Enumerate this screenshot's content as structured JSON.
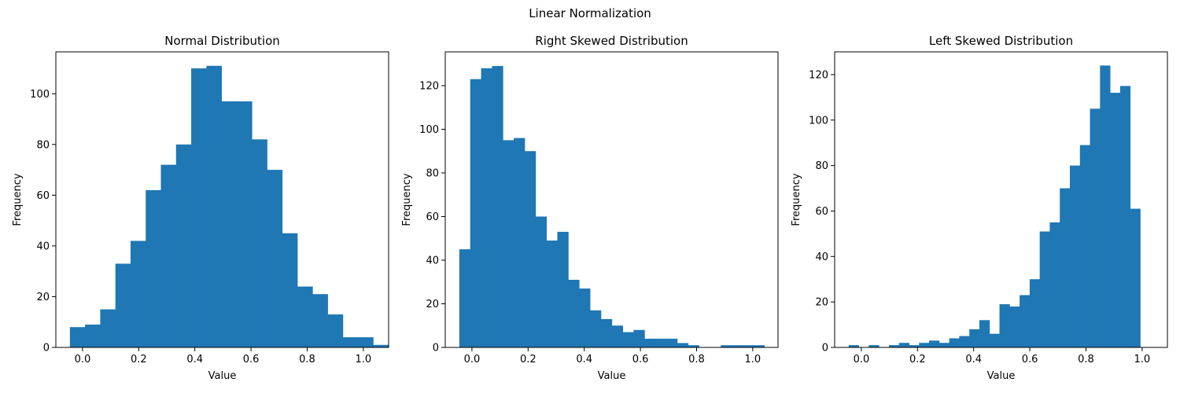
{
  "figure": {
    "suptitle": "Linear Normalization"
  },
  "chart_data": [
    {
      "type": "bar",
      "title": "Normal Distribution",
      "xlabel": "Value",
      "ylabel": "Frequency",
      "xlim": [
        -0.095,
        1.09
      ],
      "ylim": [
        0,
        116.5
      ],
      "xticks": [
        0.0,
        0.2,
        0.4,
        0.6,
        0.8,
        1.0
      ],
      "xtick_labels": [
        "0.0",
        "0.2",
        "0.4",
        "0.6",
        "0.8",
        "1.0"
      ],
      "yticks": [
        0,
        20,
        40,
        60,
        80,
        100
      ],
      "ytick_labels": [
        "0",
        "20",
        "40",
        "60",
        "80",
        "100"
      ],
      "bar_color": "#1f77b4",
      "bins_start": -0.045,
      "bin_width": 0.054,
      "values": [
        8,
        9,
        15,
        33,
        42,
        62,
        72,
        80,
        110,
        111,
        97,
        97,
        82,
        70,
        45,
        24,
        21,
        13,
        4,
        4,
        1
      ]
    },
    {
      "type": "bar",
      "title": "Right Skewed Distribution",
      "xlabel": "Value",
      "ylabel": "Frequency",
      "xlim": [
        -0.095,
        1.09
      ],
      "ylim": [
        0,
        135.5
      ],
      "xticks": [
        0.0,
        0.2,
        0.4,
        0.6,
        0.8,
        1.0
      ],
      "xtick_labels": [
        "0.0",
        "0.2",
        "0.4",
        "0.6",
        "0.8",
        "1.0"
      ],
      "yticks": [
        0,
        20,
        40,
        60,
        80,
        100,
        120
      ],
      "ytick_labels": [
        "0",
        "20",
        "40",
        "60",
        "80",
        "100",
        "120"
      ],
      "bar_color": "#1f77b4",
      "bins_start": -0.045,
      "bin_width": 0.0388,
      "values": [
        45,
        123,
        128,
        129,
        95,
        96,
        90,
        60,
        49,
        53,
        31,
        27,
        17,
        13,
        10,
        7,
        8,
        4,
        4,
        4,
        2,
        1,
        0,
        0,
        1,
        1,
        1,
        1
      ]
    },
    {
      "type": "bar",
      "title": "Left Skewed Distribution",
      "xlabel": "Value",
      "ylabel": "Frequency",
      "xlim": [
        -0.095,
        1.09
      ],
      "ylim": [
        0,
        130
      ],
      "xticks": [
        0.0,
        0.2,
        0.4,
        0.6,
        0.8,
        1.0
      ],
      "xtick_labels": [
        "0.0",
        "0.2",
        "0.4",
        "0.6",
        "0.8",
        "1.0"
      ],
      "yticks": [
        0,
        20,
        40,
        60,
        80,
        100,
        120
      ],
      "ytick_labels": [
        "0",
        "20",
        "40",
        "60",
        "80",
        "100",
        "120"
      ],
      "bar_color": "#1f77b4",
      "bins_start": -0.045,
      "bin_width": 0.0358,
      "values": [
        1,
        0,
        1,
        0,
        1,
        2,
        1,
        2,
        3,
        2,
        4,
        5,
        8,
        12,
        6,
        19,
        18,
        23,
        30,
        51,
        55,
        70,
        80,
        89,
        105,
        124,
        112,
        115,
        61
      ]
    }
  ]
}
